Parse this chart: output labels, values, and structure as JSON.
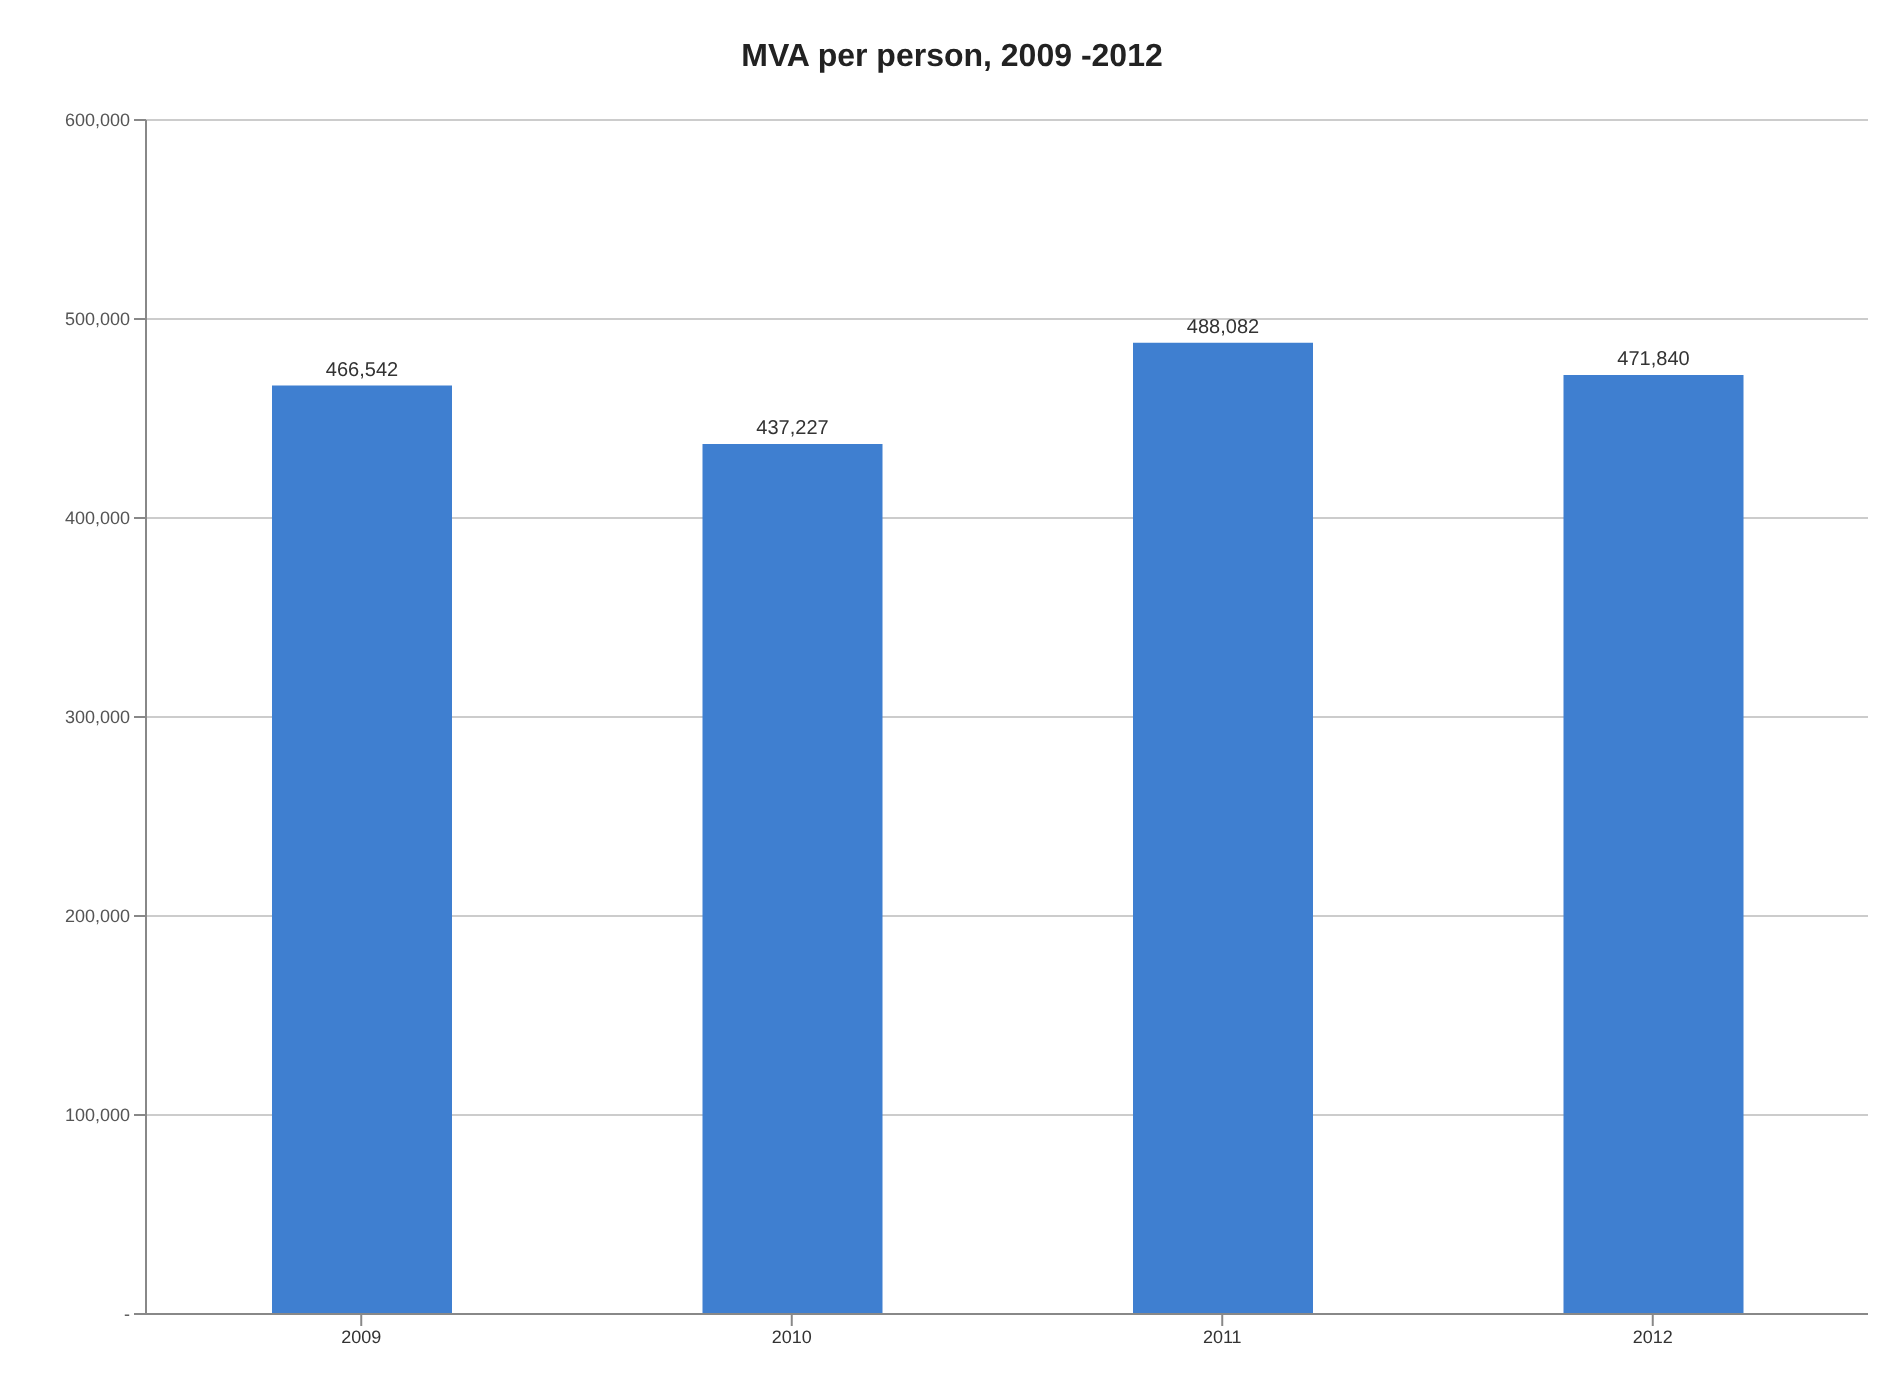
{
  "chart_data": {
    "type": "bar",
    "title": "MVA per person, 2009 -2012",
    "categories": [
      "2009",
      "2010",
      "2011",
      "2012"
    ],
    "values": [
      466542,
      437227,
      488082,
      471840
    ],
    "color": "#3f7fd0",
    "ylim": [
      0,
      600000
    ],
    "yticks": [
      {
        "value": 0,
        "label": "-"
      },
      {
        "value": 100000,
        "label": "100,000"
      },
      {
        "value": 200000,
        "label": "200,000"
      },
      {
        "value": 300000,
        "label": "300,000"
      },
      {
        "value": 400000,
        "label": "400,000"
      },
      {
        "value": 500000,
        "label": "500,000"
      },
      {
        "value": 600000,
        "label": "600,000"
      }
    ],
    "grid": "y",
    "value_labels": [
      "466,542",
      "437,227",
      "488,082",
      "471,840"
    ]
  }
}
